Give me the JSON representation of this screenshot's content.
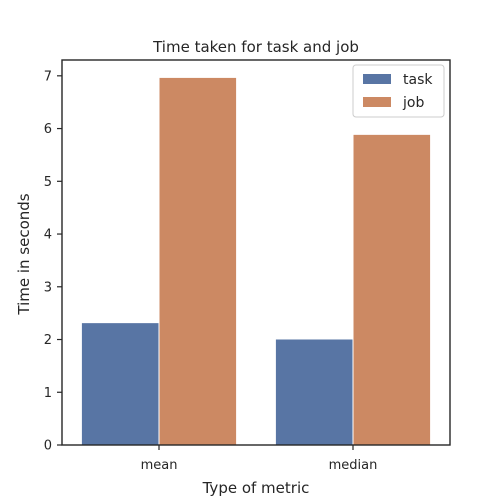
{
  "chart_data": {
    "type": "bar",
    "title": "Time taken for task and job",
    "xlabel": "Type of metric",
    "ylabel": "Time in seconds",
    "categories": [
      "mean",
      "median"
    ],
    "series": [
      {
        "name": "task",
        "values": [
          2.32,
          2.01
        ],
        "color": "#5875a4"
      },
      {
        "name": "job",
        "values": [
          6.97,
          5.89
        ],
        "color": "#cc8963"
      }
    ],
    "ylim": [
      0,
      7.3
    ],
    "yticks": [
      0,
      1,
      2,
      3,
      4,
      5,
      6,
      7
    ],
    "grid": false,
    "legend_position": "top-right"
  }
}
